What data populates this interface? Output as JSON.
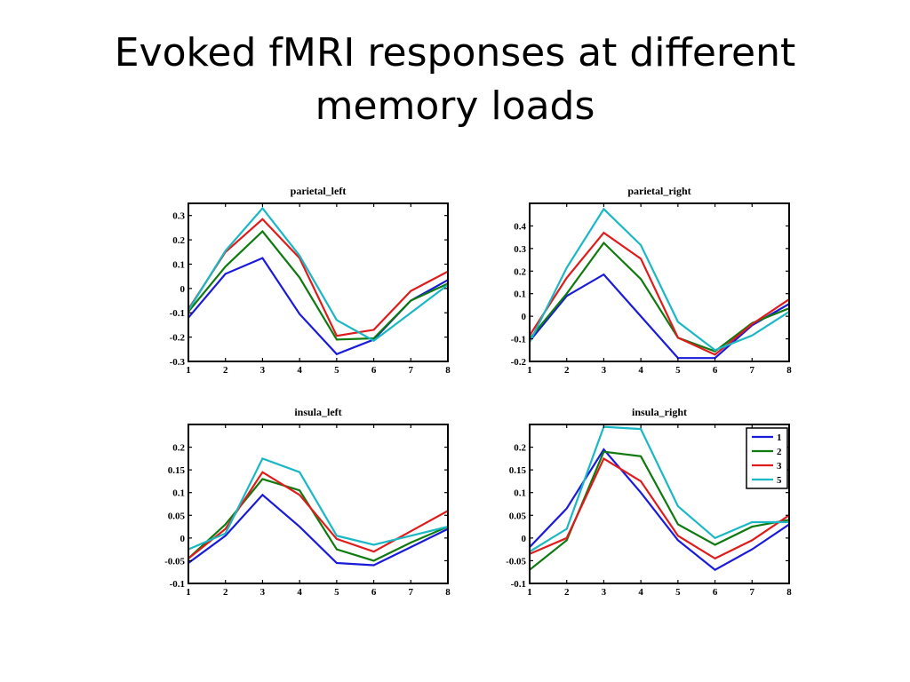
{
  "slide": {
    "title": "Evoked fMRI responses at different\nmemory loads"
  },
  "colors": {
    "1": "#1a1adb",
    "2": "#0f7a0f",
    "3": "#e01b1b",
    "5": "#1ab8c4"
  },
  "chart_data": [
    {
      "type": "line",
      "title": "parietal_left",
      "x": [
        1,
        2,
        3,
        4,
        5,
        6,
        7,
        8
      ],
      "ylim": [
        -0.3,
        0.35
      ],
      "yticks": [
        -0.3,
        -0.2,
        -0.1,
        0,
        0.1,
        0.2,
        0.3
      ],
      "ytick_labels": [
        "-0.3",
        "-0.2",
        "-0.1",
        "0",
        "0.1",
        "0.2",
        "0.3"
      ],
      "xticks": [
        "1",
        "2",
        "3",
        "4",
        "5",
        "6",
        "7",
        "8"
      ],
      "series": [
        {
          "name": "1",
          "values": [
            -0.12,
            0.06,
            0.125,
            -0.105,
            -0.27,
            -0.21,
            -0.05,
            0.035
          ]
        },
        {
          "name": "2",
          "values": [
            -0.095,
            0.09,
            0.235,
            0.045,
            -0.21,
            -0.205,
            -0.05,
            0.02
          ]
        },
        {
          "name": "3",
          "values": [
            -0.085,
            0.15,
            0.285,
            0.125,
            -0.195,
            -0.17,
            -0.01,
            0.07
          ]
        },
        {
          "name": "5",
          "values": [
            -0.09,
            0.155,
            0.33,
            0.135,
            -0.13,
            -0.215,
            -0.1,
            0.015
          ]
        }
      ]
    },
    {
      "type": "line",
      "title": "parietal_right",
      "x": [
        1,
        2,
        3,
        4,
        5,
        6,
        7,
        8
      ],
      "ylim": [
        -0.2,
        0.5
      ],
      "yticks": [
        -0.2,
        -0.1,
        0,
        0.1,
        0.2,
        0.3,
        0.4
      ],
      "ytick_labels": [
        "-0.2",
        "-0.1",
        "0",
        "0.1",
        "0.2",
        "0.3",
        "0.4"
      ],
      "xticks": [
        "1",
        "2",
        "3",
        "4",
        "5",
        "6",
        "7",
        "8"
      ],
      "series": [
        {
          "name": "1",
          "values": [
            -0.11,
            0.09,
            0.185,
            0.0,
            -0.185,
            -0.185,
            -0.04,
            0.055
          ]
        },
        {
          "name": "2",
          "values": [
            -0.1,
            0.1,
            0.325,
            0.165,
            -0.095,
            -0.155,
            -0.03,
            0.035
          ]
        },
        {
          "name": "3",
          "values": [
            -0.085,
            0.17,
            0.37,
            0.255,
            -0.095,
            -0.17,
            -0.035,
            0.075
          ]
        },
        {
          "name": "5",
          "values": [
            -0.115,
            0.215,
            0.475,
            0.315,
            -0.025,
            -0.15,
            -0.085,
            0.02
          ]
        }
      ]
    },
    {
      "type": "line",
      "title": "insula_left",
      "x": [
        1,
        2,
        3,
        4,
        5,
        6,
        7,
        8
      ],
      "ylim": [
        -0.1,
        0.25
      ],
      "yticks": [
        -0.1,
        -0.05,
        0,
        0.05,
        0.1,
        0.15,
        0.2
      ],
      "ytick_labels": [
        "-0.1",
        "-0.05",
        "0",
        "0.05",
        "0.1",
        "0.15",
        "0.2"
      ],
      "xticks": [
        "1",
        "2",
        "3",
        "4",
        "5",
        "6",
        "7",
        "8"
      ],
      "series": [
        {
          "name": "1",
          "values": [
            -0.055,
            0.005,
            0.095,
            0.025,
            -0.055,
            -0.06,
            -0.02,
            0.02
          ]
        },
        {
          "name": "2",
          "values": [
            -0.045,
            0.03,
            0.13,
            0.105,
            -0.025,
            -0.05,
            -0.01,
            0.025
          ]
        },
        {
          "name": "3",
          "values": [
            -0.045,
            0.02,
            0.145,
            0.095,
            -0.002,
            -0.03,
            0.015,
            0.06
          ]
        },
        {
          "name": "5",
          "values": [
            -0.025,
            0.01,
            0.175,
            0.145,
            0.005,
            -0.015,
            0.005,
            0.025
          ]
        }
      ]
    },
    {
      "type": "line",
      "title": "insula_right",
      "x": [
        1,
        2,
        3,
        4,
        5,
        6,
        7,
        8
      ],
      "ylim": [
        -0.1,
        0.25
      ],
      "yticks": [
        -0.1,
        -0.05,
        0,
        0.05,
        0.1,
        0.15,
        0.2
      ],
      "ytick_labels": [
        "-0.1",
        "-0.05",
        "0",
        "0.05",
        "0.1",
        "0.15",
        "0.2"
      ],
      "xticks": [
        "1",
        "2",
        "3",
        "4",
        "5",
        "6",
        "7",
        "8"
      ],
      "legend": {
        "position": "top-right",
        "entries": [
          "1",
          "2",
          "3",
          "5"
        ]
      },
      "series": [
        {
          "name": "1",
          "values": [
            -0.02,
            0.065,
            0.195,
            0.1,
            -0.005,
            -0.07,
            -0.025,
            0.03
          ]
        },
        {
          "name": "2",
          "values": [
            -0.07,
            -0.005,
            0.19,
            0.18,
            0.03,
            -0.015,
            0.025,
            0.04
          ]
        },
        {
          "name": "3",
          "values": [
            -0.035,
            0.0,
            0.175,
            0.125,
            0.005,
            -0.045,
            -0.005,
            0.05
          ]
        },
        {
          "name": "5",
          "values": [
            -0.03,
            0.02,
            0.245,
            0.24,
            0.07,
            0.0,
            0.035,
            0.035
          ]
        }
      ]
    }
  ]
}
